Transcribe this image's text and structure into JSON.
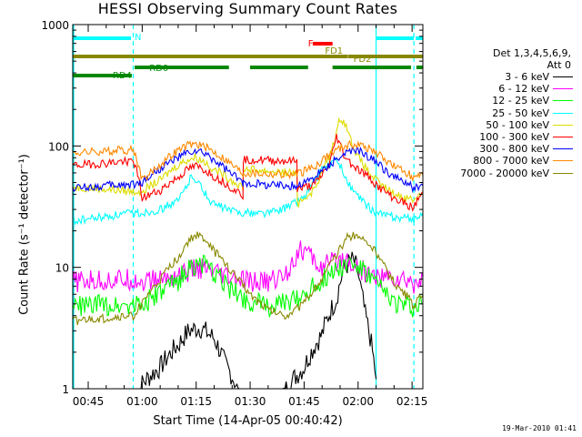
{
  "chart_data": {
    "type": "line",
    "title": "HESSI Observing Summary Count Rates",
    "xlabel": "Start Time (14-Apr-05 00:40:42)",
    "ylabel": "Count Rate (s⁻¹ detector⁻¹)",
    "y_scale": "log",
    "ylim": [
      1,
      1000
    ],
    "xlim_minutes": [
      40.7,
      138.0
    ],
    "x_ticks": [
      "00:45",
      "01:00",
      "01:15",
      "01:30",
      "01:45",
      "02:00",
      "02:15"
    ],
    "x_tick_minutes": [
      45,
      60,
      75,
      90,
      105,
      120,
      135
    ],
    "y_ticks": [
      "1",
      "10",
      "100",
      "1000"
    ],
    "y_tick_values": [
      1,
      10,
      100,
      1000
    ],
    "night_windows": [
      [
        40.7,
        57.5
      ],
      [
        125.0,
        135.5
      ]
    ],
    "series": [
      {
        "name": "3 - 6 keV",
        "color": "#000000",
        "x": [
          57.5,
          60,
          65,
          70,
          73,
          76,
          80,
          83,
          86,
          90,
          95,
          100,
          105,
          110,
          114,
          116,
          118,
          119,
          120,
          121,
          122,
          124,
          125
        ],
        "values": [
          0,
          1.1,
          1.5,
          2.3,
          3.0,
          3.2,
          2.6,
          1.6,
          1.1,
          0,
          0,
          1.0,
          1.5,
          2.8,
          5.5,
          9.5,
          11.5,
          11,
          9,
          6,
          4,
          2,
          1.2
        ]
      },
      {
        "name": "6 - 12 keV",
        "color": "#ff00ff",
        "x": [
          40.7,
          50,
          57.5,
          60,
          65,
          70,
          73,
          76,
          80,
          85,
          90,
          95,
          100,
          103,
          105,
          108,
          110,
          113,
          116,
          118,
          120,
          122,
          125,
          130,
          135.5,
          138
        ],
        "values": [
          7.6,
          7.8,
          8.0,
          7.6,
          8.0,
          8.6,
          9.3,
          9.8,
          8.8,
          8.0,
          7.5,
          7.6,
          8.8,
          13,
          14,
          11,
          10,
          11,
          12,
          11,
          10,
          9,
          8.4,
          8.0,
          7.4,
          8.3
        ]
      },
      {
        "name": "12 - 25 keV",
        "color": "#00ff00",
        "x": [
          40.7,
          50,
          57.5,
          60,
          65,
          70,
          73,
          76,
          80,
          85,
          90,
          95,
          100,
          105,
          110,
          114,
          117,
          119,
          121,
          124,
          127,
          130,
          135.5,
          138
        ],
        "values": [
          4.8,
          4.9,
          5.0,
          5.0,
          6.0,
          7.8,
          9.8,
          10.8,
          8.8,
          6.5,
          5.2,
          4.8,
          5.0,
          6.0,
          7.8,
          9.8,
          10.8,
          10.5,
          9.5,
          7.8,
          6.2,
          5.2,
          4.6,
          5.0
        ]
      },
      {
        "name": "25 - 50 keV",
        "color": "#00ffff",
        "x": [
          40.7,
          50,
          57.5,
          60,
          65,
          70,
          72,
          74,
          76,
          78,
          80,
          85,
          90,
          95,
          100,
          105,
          108,
          111,
          113,
          115,
          116,
          118,
          120,
          122,
          125,
          130,
          135.5,
          138
        ],
        "values": [
          24,
          26,
          28,
          28,
          30,
          35,
          45,
          58,
          48,
          38,
          33,
          29,
          28,
          28,
          31,
          38,
          52,
          68,
          75,
          70,
          58,
          45,
          38,
          33,
          28,
          26,
          25,
          28
        ]
      },
      {
        "name": "50 - 100 keV",
        "color": "#dddd00",
        "x": [
          40.7,
          50,
          57.5,
          60,
          65,
          70,
          73,
          75,
          78,
          80,
          85,
          88,
          88.1,
          95,
          103,
          103.1,
          108,
          112,
          114,
          115,
          116,
          117,
          118,
          120,
          123,
          126,
          130,
          135.5,
          138
        ],
        "values": [
          46,
          44,
          42,
          43,
          52,
          70,
          78,
          80,
          72,
          64,
          52,
          46,
          65,
          62,
          60,
          33,
          44,
          80,
          125,
          170,
          160,
          140,
          110,
          80,
          60,
          48,
          40,
          36,
          42
        ]
      },
      {
        "name": "100 - 300 keV",
        "color": "#ff0000",
        "x": [
          40.7,
          50,
          57.5,
          60,
          65,
          70,
          73,
          75,
          78,
          80,
          85,
          88,
          88.1,
          95,
          103,
          103.1,
          108,
          110,
          112,
          113,
          114,
          116,
          118,
          120,
          123,
          126,
          130,
          135.5,
          138
        ],
        "values": [
          69,
          72,
          76,
          37,
          43,
          55,
          65,
          68,
          62,
          56,
          45,
          39,
          78,
          76,
          75,
          44,
          48,
          58,
          70,
          90,
          120,
          85,
          72,
          64,
          55,
          45,
          37,
          31,
          42
        ]
      },
      {
        "name": "300 - 800 keV",
        "color": "#0000ff",
        "x": [
          40.7,
          50,
          57.5,
          60,
          65,
          70,
          73,
          75,
          78,
          80,
          85,
          88,
          88.1,
          95,
          103,
          103.1,
          108,
          112,
          116,
          119,
          121,
          124,
          127,
          130,
          135.5,
          138
        ],
        "values": [
          45,
          47,
          48,
          50,
          65,
          80,
          88,
          90,
          84,
          76,
          58,
          49,
          50,
          48,
          47,
          47,
          55,
          70,
          85,
          92,
          88,
          78,
          65,
          55,
          45,
          47
        ]
      },
      {
        "name": "800 - 7000 keV",
        "color": "#ff8800",
        "x": [
          40.7,
          50,
          57.5,
          60,
          65,
          70,
          73,
          75,
          78,
          80,
          85,
          88,
          88.1,
          95,
          103,
          103.1,
          108,
          112,
          116,
          119,
          121,
          124,
          127,
          130,
          135.5,
          138
        ],
        "values": [
          88,
          90,
          94,
          52,
          70,
          92,
          102,
          104,
          97,
          89,
          70,
          59,
          60,
          59,
          58,
          58,
          68,
          85,
          100,
          104,
          101,
          92,
          80,
          68,
          55,
          57
        ]
      },
      {
        "name": "7000 - 20000 keV",
        "color": "#888800",
        "x": [
          40.7,
          50,
          57.5,
          60,
          65,
          70,
          73,
          75,
          78,
          80,
          85,
          90,
          95,
          100,
          105,
          110,
          114,
          117,
          119,
          121,
          124,
          127,
          130,
          135.5,
          138
        ],
        "values": [
          3.6,
          3.8,
          4.0,
          5.0,
          7.8,
          12,
          16.5,
          18.5,
          16.5,
          13.5,
          9.0,
          6.0,
          4.5,
          4.0,
          5.0,
          8.0,
          12.5,
          17.5,
          18.5,
          17.5,
          14.5,
          10.5,
          7.5,
          4.8,
          6.0
        ]
      }
    ],
    "flag_bars": [
      {
        "label": "N",
        "color": "#00ffff",
        "label_minute": 57.9,
        "segments": [
          [
            40.7,
            56.9
          ],
          [
            125.0,
            135.5
          ],
          [
            136.0,
            138.0
          ]
        ]
      },
      {
        "label": "F",
        "color": "#ff0000",
        "label_minute": 106.1,
        "segments": [
          [
            107.4,
            112.9
          ]
        ]
      },
      {
        "label": "FD1",
        "color": "#888800",
        "label_minute": 110.8,
        "segments": [
          [
            40.7,
            117.1
          ],
          [
            117.2,
            138.0
          ]
        ]
      },
      {
        "label": "FD2",
        "color": "#888800",
        "label_minute": 118.7,
        "segments": [
          [
            118.7,
            119.0
          ]
        ]
      },
      {
        "label": "RD0",
        "color": "#008800",
        "label_minute": 62.0,
        "segments": [
          [
            57.9,
            84.1
          ],
          [
            90.0,
            106.1
          ],
          [
            112.9,
            134.7
          ],
          [
            136.2,
            138.0
          ]
        ]
      },
      {
        "label": "RD4",
        "color": "#008800",
        "label_minute": 51.8,
        "segments": [
          [
            40.7,
            57.1
          ]
        ]
      }
    ]
  },
  "legend": {
    "header_line1": "Det 1,3,4,5,6,9,",
    "header_line2": "Att 0"
  },
  "footer": {
    "date": "19-Mar-2010 01:41"
  }
}
